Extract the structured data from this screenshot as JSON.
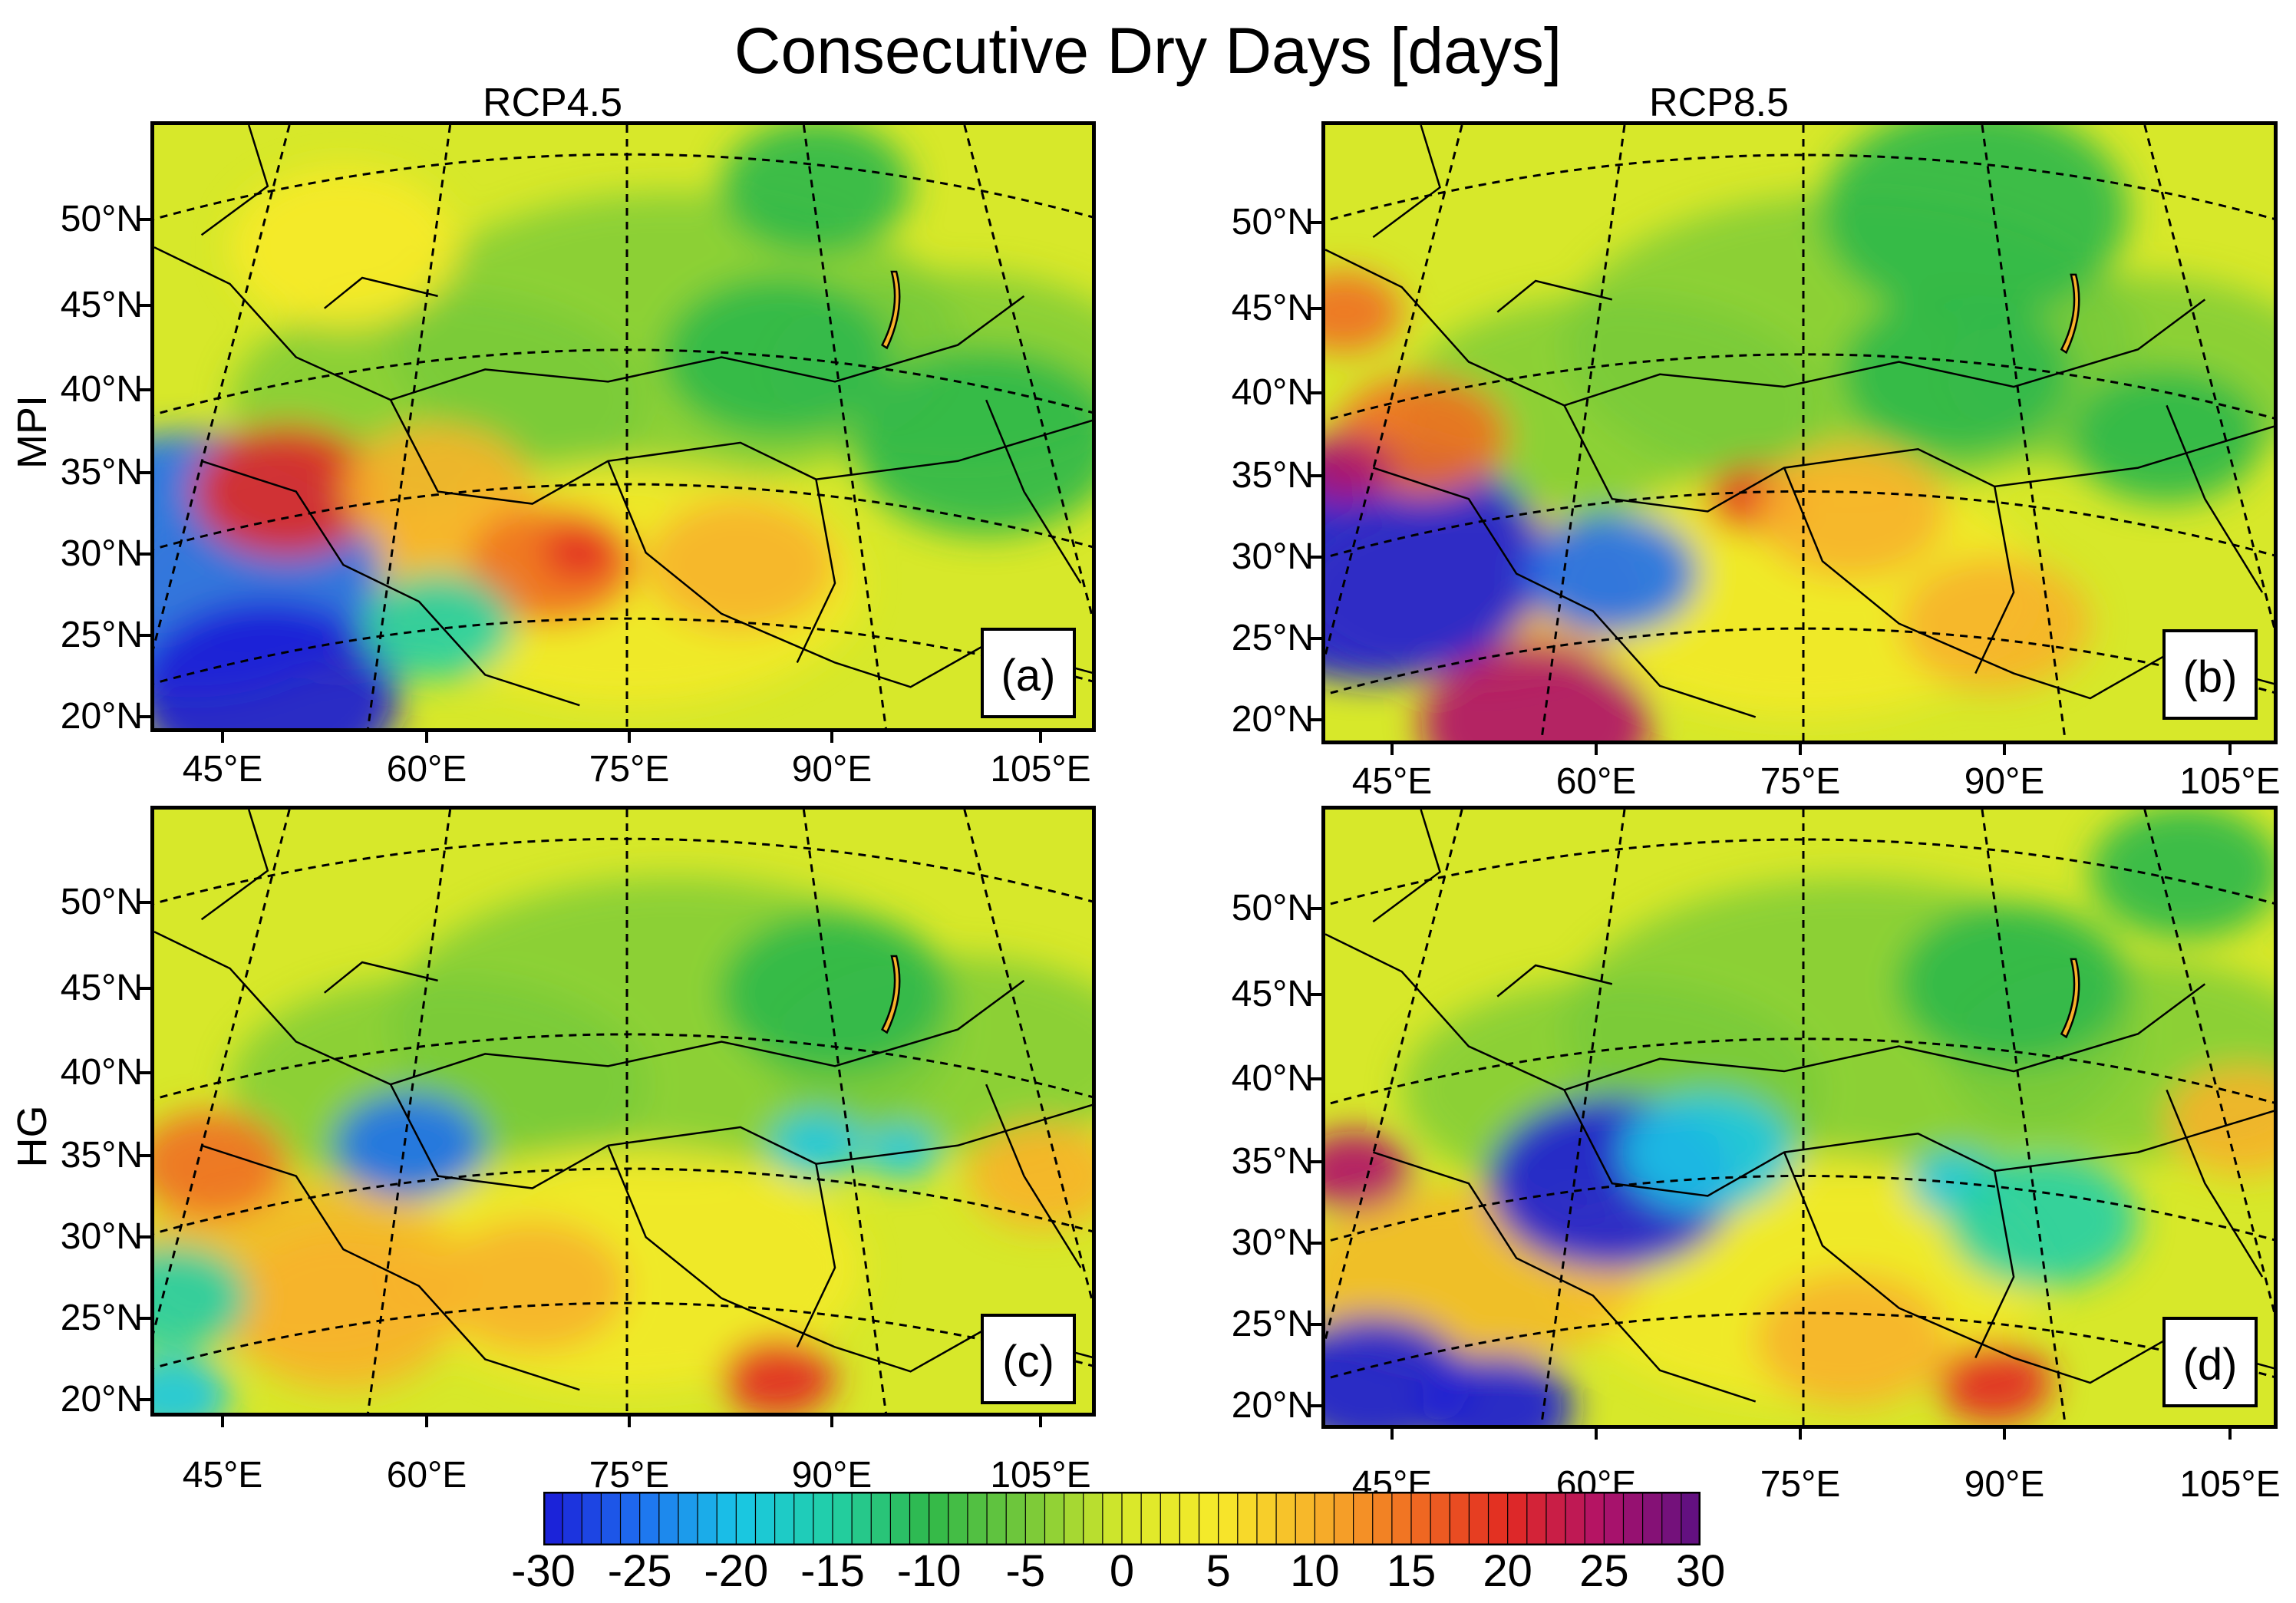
{
  "figure": {
    "title": "Consecutive Dry Days [days]",
    "columns": [
      "RCP4.5",
      "RCP8.5"
    ],
    "rows": [
      "MPI",
      "HG"
    ]
  },
  "axes": {
    "lat_ticks": [
      "50°N",
      "45°N",
      "40°N",
      "35°N",
      "30°N",
      "25°N",
      "20°N"
    ],
    "lon_ticks": [
      "45°E",
      "60°E",
      "75°E",
      "90°E",
      "105°E"
    ]
  },
  "panels": [
    {
      "label": "(a)",
      "model": "MPI",
      "scenario": "RCP4.5",
      "min_cdd_change": -30,
      "max_cdd_change": 22
    },
    {
      "label": "(b)",
      "model": "MPI",
      "scenario": "RCP8.5",
      "min_cdd_change": -30,
      "max_cdd_change": 27
    },
    {
      "label": "(c)",
      "model": "HG",
      "scenario": "RCP4.5",
      "min_cdd_change": -28,
      "max_cdd_change": 22
    },
    {
      "label": "(d)",
      "model": "HG",
      "scenario": "RCP8.5",
      "min_cdd_change": -30,
      "max_cdd_change": 27
    }
  ],
  "colorbar": {
    "min": -30,
    "max": 30,
    "labels": [
      "-30",
      "-25",
      "-20",
      "-15",
      "-10",
      "-5",
      "0",
      "5",
      "10",
      "15",
      "20",
      "25",
      "30"
    ],
    "colors": [
      "#1b1bd6",
      "#1e6ff0",
      "#19c6e6",
      "#22cfa6",
      "#2fb84a",
      "#74c83a",
      "#d7e82a",
      "#f7ea2a",
      "#f7b22a",
      "#f06e22",
      "#e22a22",
      "#b0126a",
      "#5a1082"
    ]
  }
}
